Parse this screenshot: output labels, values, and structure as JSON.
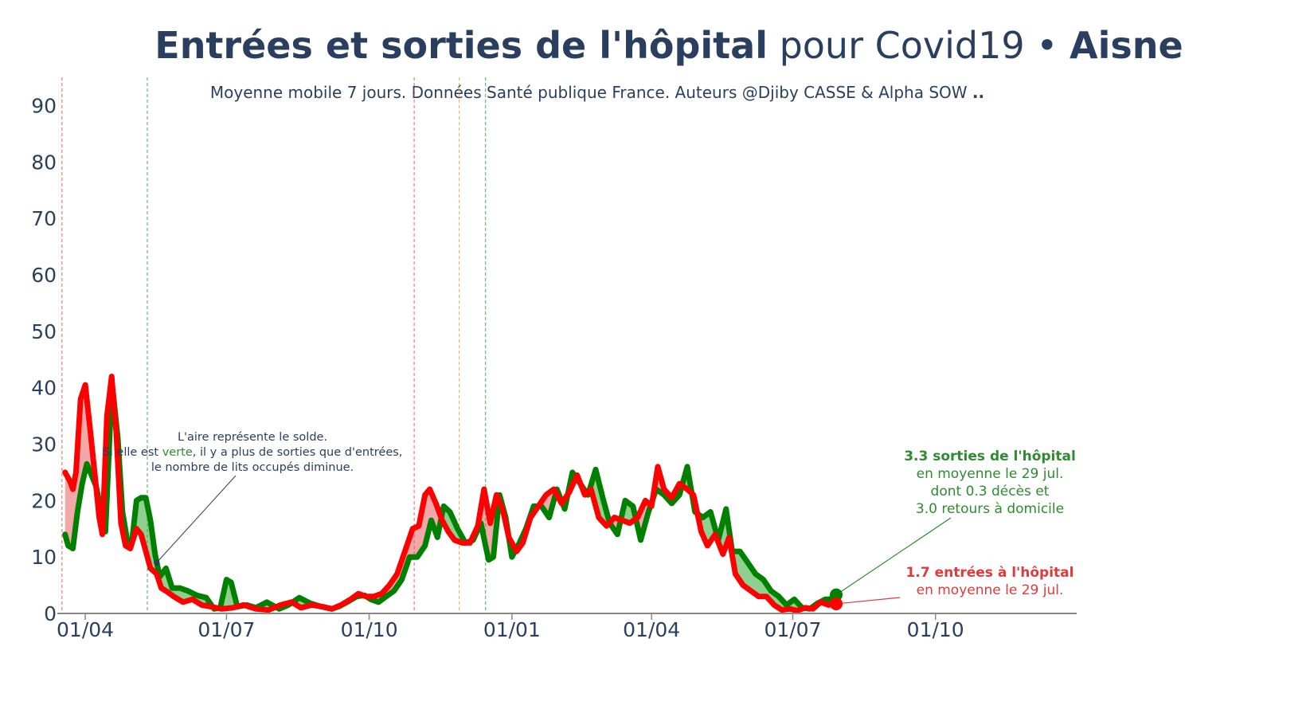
{
  "header": {
    "title_bold": "Entrées et sorties de l'hôpital",
    "title_normal": "pour Covid19 •",
    "title_region": "Aisne",
    "subtitle": "Moyenne mobile 7 jours. Données Santé publique France. Auteurs @Djiby CASSE & Alpha SOW ",
    "subtitle_bold": ".."
  },
  "chart_data": {
    "type": "line",
    "title": "Entrées et sorties de l'hôpital pour Covid19 • Aisne",
    "subtitle": "Moyenne mobile 7 jours. Données Santé publique France. Auteurs @Djiby CASSE & Alpha SOW ..",
    "xlabel": "",
    "ylabel": "",
    "x_range": [
      "2020-03-14",
      "2021-12-31"
    ],
    "ylim": [
      0,
      95
    ],
    "x_ticks": [
      {
        "date": "2020-04-01",
        "label": "01/04"
      },
      {
        "date": "2020-07-01",
        "label": "01/07"
      },
      {
        "date": "2020-10-01",
        "label": "01/10"
      },
      {
        "date": "2021-01-01",
        "label": "01/01"
      },
      {
        "date": "2021-04-01",
        "label": "01/04"
      },
      {
        "date": "2021-07-01",
        "label": "01/07"
      },
      {
        "date": "2021-10-01",
        "label": "01/10"
      }
    ],
    "y_ticks": [
      0,
      10,
      20,
      30,
      40,
      50,
      60,
      70,
      80,
      90
    ],
    "grid": false,
    "vlines": [
      {
        "date": "2020-03-17",
        "color": "#e05050"
      },
      {
        "date": "2020-05-11",
        "color": "#3aa03a"
      },
      {
        "date": "2020-10-30",
        "color": "#e05050"
      },
      {
        "date": "2020-11-28",
        "color": "#f0a040"
      },
      {
        "date": "2020-12-15",
        "color": "#3aa03a"
      }
    ],
    "series": [
      {
        "key": "sorties",
        "color": "#008000",
        "points": [
          [
            "2020-03-19",
            14
          ],
          [
            "2020-03-21",
            12
          ],
          [
            "2020-03-24",
            11.5
          ],
          [
            "2020-03-27",
            18
          ],
          [
            "2020-03-30",
            23
          ],
          [
            "2020-04-02",
            26.5
          ],
          [
            "2020-04-05",
            24.5
          ],
          [
            "2020-04-08",
            22.5
          ],
          [
            "2020-04-11",
            18.5
          ],
          [
            "2020-04-14",
            14.5
          ],
          [
            "2020-04-17",
            33
          ],
          [
            "2020-04-19",
            39
          ],
          [
            "2020-04-22",
            31
          ],
          [
            "2020-04-25",
            18
          ],
          [
            "2020-04-28",
            13
          ],
          [
            "2020-05-01",
            12.5
          ],
          [
            "2020-05-04",
            20
          ],
          [
            "2020-05-07",
            20.5
          ],
          [
            "2020-05-10",
            20.5
          ],
          [
            "2020-05-13",
            16.5
          ],
          [
            "2020-05-16",
            10.5
          ],
          [
            "2020-05-19",
            6.5
          ],
          [
            "2020-05-23",
            8
          ],
          [
            "2020-05-27",
            4.5
          ],
          [
            "2020-06-01",
            4.5
          ],
          [
            "2020-06-06",
            4
          ],
          [
            "2020-06-12",
            3.2
          ],
          [
            "2020-06-18",
            2.8
          ],
          [
            "2020-06-23",
            0.8
          ],
          [
            "2020-06-27",
            1
          ],
          [
            "2020-07-01",
            6
          ],
          [
            "2020-07-04",
            5.5
          ],
          [
            "2020-07-08",
            1.2
          ],
          [
            "2020-07-14",
            1.5
          ],
          [
            "2020-07-20",
            1
          ],
          [
            "2020-07-27",
            2
          ],
          [
            "2020-08-04",
            0.8
          ],
          [
            "2020-08-10",
            1.5
          ],
          [
            "2020-08-17",
            2.8
          ],
          [
            "2020-08-24",
            1.8
          ],
          [
            "2020-08-31",
            1.2
          ],
          [
            "2020-09-07",
            0.8
          ],
          [
            "2020-09-12",
            1.3
          ],
          [
            "2020-09-18",
            2.2
          ],
          [
            "2020-09-23",
            3
          ],
          [
            "2020-09-28",
            3.2
          ],
          [
            "2020-10-02",
            2.5
          ],
          [
            "2020-10-07",
            2
          ],
          [
            "2020-10-12",
            3
          ],
          [
            "2020-10-17",
            4
          ],
          [
            "2020-10-22",
            6
          ],
          [
            "2020-10-27",
            10
          ],
          [
            "2020-11-01",
            10
          ],
          [
            "2020-11-06",
            12
          ],
          [
            "2020-11-10",
            16.5
          ],
          [
            "2020-11-14",
            13.5
          ],
          [
            "2020-11-18",
            19
          ],
          [
            "2020-11-22",
            18
          ],
          [
            "2020-11-27",
            15
          ],
          [
            "2020-12-02",
            12.5
          ],
          [
            "2020-12-07",
            13
          ],
          [
            "2020-12-12",
            16
          ],
          [
            "2020-12-15",
            12
          ],
          [
            "2020-12-17",
            9.5
          ],
          [
            "2020-12-20",
            10
          ],
          [
            "2020-12-24",
            21
          ],
          [
            "2020-12-28",
            17
          ],
          [
            "2021-01-01",
            10
          ],
          [
            "2021-01-05",
            12
          ],
          [
            "2021-01-10",
            15
          ],
          [
            "2021-01-15",
            19
          ],
          [
            "2021-01-20",
            19
          ],
          [
            "2021-01-25",
            17
          ],
          [
            "2021-01-30",
            22
          ],
          [
            "2021-02-04",
            18.5
          ],
          [
            "2021-02-09",
            25
          ],
          [
            "2021-02-14",
            23
          ],
          [
            "2021-02-19",
            21
          ],
          [
            "2021-02-24",
            25.5
          ],
          [
            "2021-03-01",
            20
          ],
          [
            "2021-03-05",
            16
          ],
          [
            "2021-03-10",
            14
          ],
          [
            "2021-03-15",
            20
          ],
          [
            "2021-03-20",
            19
          ],
          [
            "2021-03-25",
            13
          ],
          [
            "2021-03-30",
            18
          ],
          [
            "2021-04-04",
            22
          ],
          [
            "2021-04-09",
            21
          ],
          [
            "2021-04-14",
            19.5
          ],
          [
            "2021-04-19",
            21
          ],
          [
            "2021-04-24",
            26
          ],
          [
            "2021-04-29",
            18
          ],
          [
            "2021-05-04",
            17
          ],
          [
            "2021-05-09",
            18
          ],
          [
            "2021-05-14",
            13
          ],
          [
            "2021-05-19",
            18.5
          ],
          [
            "2021-05-23",
            11
          ],
          [
            "2021-05-28",
            11
          ],
          [
            "2021-06-02",
            9
          ],
          [
            "2021-06-07",
            7
          ],
          [
            "2021-06-12",
            6
          ],
          [
            "2021-06-17",
            4
          ],
          [
            "2021-06-22",
            3
          ],
          [
            "2021-06-27",
            1.5
          ],
          [
            "2021-07-02",
            2.5
          ],
          [
            "2021-07-07",
            1
          ],
          [
            "2021-07-12",
            0.8
          ],
          [
            "2021-07-17",
            1.8
          ],
          [
            "2021-07-22",
            2.5
          ],
          [
            "2021-07-25",
            2.5
          ],
          [
            "2021-07-29",
            3.3
          ]
        ]
      },
      {
        "key": "entrees",
        "color": "#ff0000",
        "points": [
          [
            "2020-03-19",
            25
          ],
          [
            "2020-03-22",
            23.5
          ],
          [
            "2020-03-24",
            22
          ],
          [
            "2020-03-26",
            25
          ],
          [
            "2020-03-29",
            38
          ],
          [
            "2020-04-01",
            40.5
          ],
          [
            "2020-04-04",
            33
          ],
          [
            "2020-04-07",
            25
          ],
          [
            "2020-04-10",
            17
          ],
          [
            "2020-04-12",
            14
          ],
          [
            "2020-04-15",
            35
          ],
          [
            "2020-04-18",
            42
          ],
          [
            "2020-04-21",
            32
          ],
          [
            "2020-04-24",
            16
          ],
          [
            "2020-04-27",
            12
          ],
          [
            "2020-04-30",
            11.5
          ],
          [
            "2020-05-04",
            15
          ],
          [
            "2020-05-07",
            14
          ],
          [
            "2020-05-10",
            11
          ],
          [
            "2020-05-13",
            8
          ],
          [
            "2020-05-17",
            7
          ],
          [
            "2020-05-20",
            4.5
          ],
          [
            "2020-05-23",
            4
          ],
          [
            "2020-05-28",
            3
          ],
          [
            "2020-06-03",
            2
          ],
          [
            "2020-06-09",
            2.5
          ],
          [
            "2020-06-15",
            1.5
          ],
          [
            "2020-06-21",
            1.2
          ],
          [
            "2020-06-28",
            0.8
          ],
          [
            "2020-07-05",
            1
          ],
          [
            "2020-07-12",
            1.5
          ],
          [
            "2020-07-20",
            0.8
          ],
          [
            "2020-07-28",
            0.6
          ],
          [
            "2020-08-05",
            1.5
          ],
          [
            "2020-08-12",
            2
          ],
          [
            "2020-08-18",
            1
          ],
          [
            "2020-08-25",
            1.5
          ],
          [
            "2020-09-01",
            1.2
          ],
          [
            "2020-09-07",
            0.8
          ],
          [
            "2020-09-13",
            1.5
          ],
          [
            "2020-09-19",
            2.5
          ],
          [
            "2020-09-24",
            3.5
          ],
          [
            "2020-09-29",
            3
          ],
          [
            "2020-10-04",
            3
          ],
          [
            "2020-10-09",
            3.5
          ],
          [
            "2020-10-14",
            5
          ],
          [
            "2020-10-19",
            7
          ],
          [
            "2020-10-24",
            11
          ],
          [
            "2020-10-29",
            15
          ],
          [
            "2020-11-02",
            15.5
          ],
          [
            "2020-11-06",
            21
          ],
          [
            "2020-11-09",
            22
          ],
          [
            "2020-11-13",
            19.5
          ],
          [
            "2020-11-17",
            16.5
          ],
          [
            "2020-11-21",
            14.5
          ],
          [
            "2020-11-25",
            13
          ],
          [
            "2020-11-30",
            12.5
          ],
          [
            "2020-12-05",
            12.5
          ],
          [
            "2020-12-10",
            15.5
          ],
          [
            "2020-12-14",
            22
          ],
          [
            "2020-12-18",
            16
          ],
          [
            "2020-12-22",
            21
          ],
          [
            "2020-12-26",
            18.5
          ],
          [
            "2020-12-30",
            13.5
          ],
          [
            "2021-01-04",
            11
          ],
          [
            "2021-01-08",
            12.5
          ],
          [
            "2021-01-13",
            17
          ],
          [
            "2021-01-18",
            19
          ],
          [
            "2021-01-23",
            21
          ],
          [
            "2021-01-28",
            22
          ],
          [
            "2021-02-02",
            19.5
          ],
          [
            "2021-02-07",
            21.5
          ],
          [
            "2021-02-12",
            24.5
          ],
          [
            "2021-02-17",
            21
          ],
          [
            "2021-02-21",
            22
          ],
          [
            "2021-02-26",
            17
          ],
          [
            "2021-03-03",
            15.5
          ],
          [
            "2021-03-08",
            17
          ],
          [
            "2021-03-13",
            16.5
          ],
          [
            "2021-03-18",
            16
          ],
          [
            "2021-03-23",
            17
          ],
          [
            "2021-03-28",
            20
          ],
          [
            "2021-04-01",
            19
          ],
          [
            "2021-04-05",
            26
          ],
          [
            "2021-04-09",
            22
          ],
          [
            "2021-04-14",
            20.5
          ],
          [
            "2021-04-19",
            23
          ],
          [
            "2021-04-24",
            22
          ],
          [
            "2021-04-28",
            21
          ],
          [
            "2021-05-03",
            14.5
          ],
          [
            "2021-05-07",
            12
          ],
          [
            "2021-05-12",
            14
          ],
          [
            "2021-05-17",
            10.5
          ],
          [
            "2021-05-21",
            13.5
          ],
          [
            "2021-05-25",
            7
          ],
          [
            "2021-05-30",
            5
          ],
          [
            "2021-06-04",
            4
          ],
          [
            "2021-06-09",
            3
          ],
          [
            "2021-06-14",
            3
          ],
          [
            "2021-06-19",
            1.5
          ],
          [
            "2021-06-24",
            0.6
          ],
          [
            "2021-06-29",
            0.8
          ],
          [
            "2021-07-04",
            0.5
          ],
          [
            "2021-07-09",
            1
          ],
          [
            "2021-07-14",
            0.8
          ],
          [
            "2021-07-19",
            2
          ],
          [
            "2021-07-24",
            1.5
          ],
          [
            "2021-07-29",
            1.7
          ]
        ]
      }
    ],
    "annotations": {
      "explain": {
        "line1": "L'aire représente le solde.",
        "line2_pre": "Si elle est ",
        "line2_word": "verte",
        "line2_post": ", il y a plus de sorties que d'entrées,",
        "line3": "le nombre de lits occupés diminue.",
        "word_color": "#2e8b2e",
        "text_color": "#2a3f5f",
        "point": [
          "2020-05-17",
          9
        ]
      },
      "sorties": {
        "line1": "3.3 sorties de l'hôpital",
        "line2": "en moyenne le 29 jul.",
        "line3": "dont 0.3 décès et",
        "line4": "3.0 retours à domicile",
        "color": "#2e8b2e",
        "point": [
          "2021-07-29",
          3.3
        ]
      },
      "entrees": {
        "line1": "1.7 entrées à l'hôpital",
        "line2": "en moyenne le 29 jul.",
        "color": "#e03a3a",
        "point": [
          "2021-07-29",
          1.7
        ]
      }
    },
    "fill_colors": {
      "green_area": "#8fd08f",
      "red_area": "#f3a8a8"
    }
  }
}
